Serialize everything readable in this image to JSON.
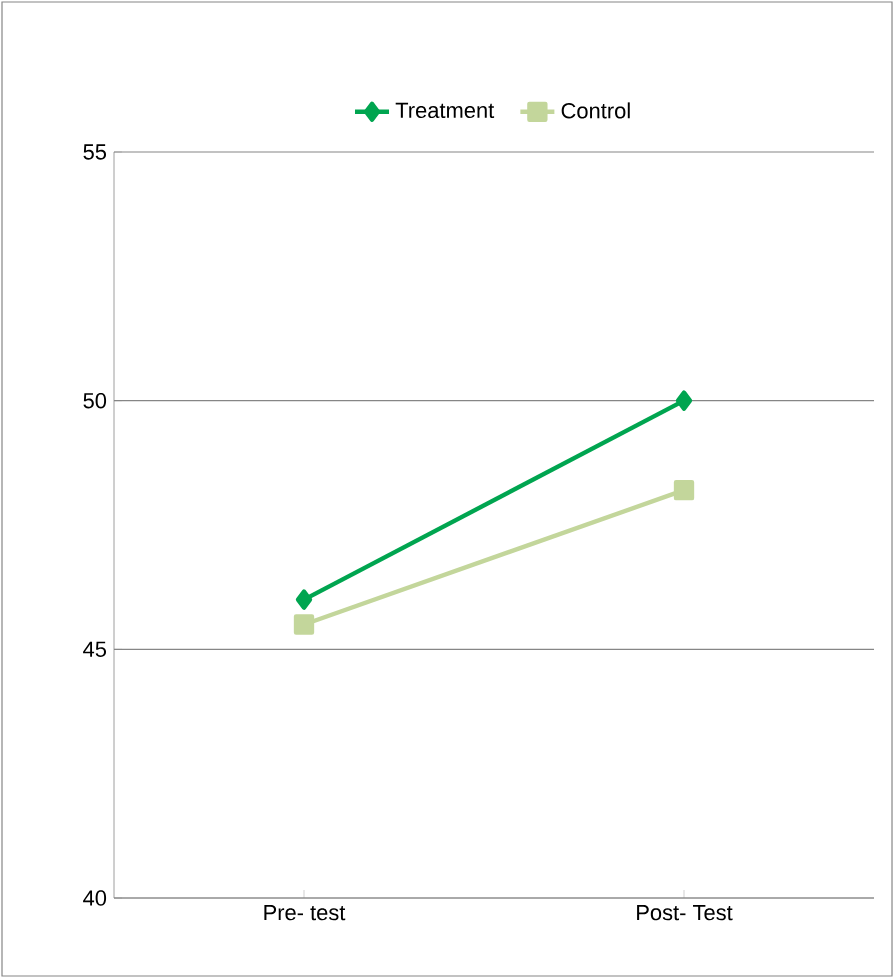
{
  "chart_data": {
    "type": "line",
    "categories": [
      "Pre- test",
      "Post- Test"
    ],
    "series": [
      {
        "name": "Treatment",
        "color": "#00a550",
        "marker": "diamond",
        "values": [
          46.0,
          50.0
        ]
      },
      {
        "name": "Control",
        "color": "#c3d69b",
        "marker": "square",
        "values": [
          45.5,
          48.2
        ]
      }
    ],
    "ylim": [
      40,
      55
    ],
    "yticks": [
      40,
      45,
      50,
      55
    ],
    "grid": "y",
    "legend": "top",
    "line_style": "solid"
  }
}
